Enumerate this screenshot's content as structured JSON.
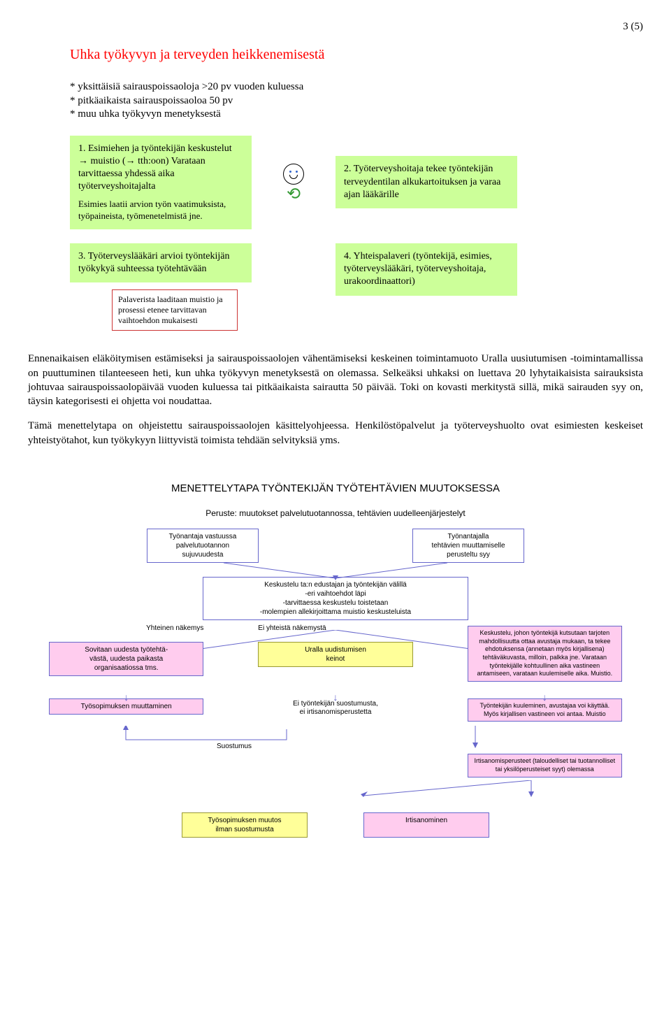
{
  "page_number": "3 (5)",
  "colors": {
    "title": "#ff0000",
    "green_box": "#ccff99",
    "pink_box": "#ffccee",
    "yellow_box": "#ffff99",
    "border_blue": "#6666cc",
    "border_red": "#cc3333",
    "arrow_green": "#339933"
  },
  "section1": {
    "title": "Uhka työkyvyn ja terveyden heikkenemisestä",
    "bullets": [
      "* yksittäisiä sairauspoissaoloja >20 pv vuoden kuluessa",
      "* pitkäaikaista sairauspoissaoloa 50 pv",
      "* muu uhka työkyvyn menetyksestä"
    ],
    "box1": {
      "main": "1. Esimiehen ja työntekijän keskustelut → muistio (→ tth:oon) Varataan tarvittaessa yhdessä aika työterveyshoitajalta",
      "sub": "Esimies laatii arvion työn vaatimuksista, työpaineista, työmenetelmistä jne."
    },
    "box2": "2. Työterveyshoitaja tekee työntekijän terveydentilan alkukartoituksen ja varaa ajan lääkärille",
    "box3": "3. Työterveyslääkäri arvioi työntekijän työkykyä suhteessa työtehtävään",
    "memo": "Palaverista laaditaan muistio ja prosessi etenee tarvittavan vaihtoehdon mukaisesti",
    "box4": "4. Yhteispalaveri (työntekijä, esimies, työterveyslääkäri, työterveyshoitaja, urakoordinaattori)"
  },
  "paragraphs": {
    "p1": "Ennenaikaisen eläköitymisen estämiseksi ja sairauspoissaolojen vähentämiseksi keskeinen toimintamuoto Uralla uusiutumisen -toimintamallissa on puuttuminen tilanteeseen heti, kun uhka työkyvyn menetyksestä on olemassa. Selkeäksi uhkaksi on luettava 20 lyhytaikaisista sairauksista johtuvaa sairauspoissaolopäivää vuoden kuluessa tai pitkäaikaista sairautta 50 päivää. Toki on kovasti merkitystä sillä, mikä sairauden syy on, täysin kategorisesti ei ohjetta voi noudattaa.",
    "p2": "Tämä menettelytapa on ohjeistettu sairauspoissaolojen käsittelyohjeessa. Henkilöstöpalvelut ja työterveyshuolto ovat esimiesten keskeiset yhteistyötahot, kun työkykyyn liittyvistä toimista tehdään selvityksiä yms."
  },
  "procedure": {
    "title": "MENETTELYTAPA TYÖNTEKIJÄN TYÖTEHTÄVIEN MUUTOKSESSA",
    "subtitle": "Peruste: muutokset palvelutuotannossa, tehtävien uudelleenjärjestelyt",
    "top_left": "Työnantaja vastuussa\npalvelutuotannon\nsujuvuudesta",
    "top_right": "Työnantajalla\ntehtävien muuttamiselle\nperusteltu syy",
    "level2": "Keskustelu ta:n edustajan ja työntekijän välillä\n-eri vaihtoehdot läpi\n-tarvittaessa keskustelu toistetaan\n-molempien allekirjoittama muistio keskusteluista",
    "branch_yes": "Yhteinen näkemys",
    "branch_no": "Ei yhteistä näkemystä",
    "l3_left": "Sovitaan uudesta työtehtä-\nvästä, uudesta paikasta\norganisaatiossa tms.",
    "l3_mid": "Uralla uudistumisen\nkeinot",
    "l3_right": "Keskustelu, johon työntekijä kutsutaan tarjoten mahdollisuutta ottaa avustaja mukaan, ta tekee ehdotuksensa (annetaan myös kirjallisena) tehtäväkuvasta, milloin, palkka jne. Varataan työntekijälle kohtuullinen aika vastineen antamiseen, varataan kuulemiselle aika. Muistio.",
    "l4_left": "Työsopimuksen muuttaminen",
    "l4_mid_note": "Ei työntekijän suostumusta,\nei irtisanomisperustetta",
    "l4_right": "Työntekijän kuuleminen, avustajaa voi käyttää. Myös kirjallisen vastineen voi antaa. Muistio",
    "suostumus": "Suostumus",
    "l5_right": "Irtisanomisperusteet (taloudelliset tai tuotannolliset tai yksilöperusteiset syyt) olemassa",
    "final_left": "Työsopimuksen muutos\nilman suostumusta",
    "final_right": "Irtisanominen"
  }
}
